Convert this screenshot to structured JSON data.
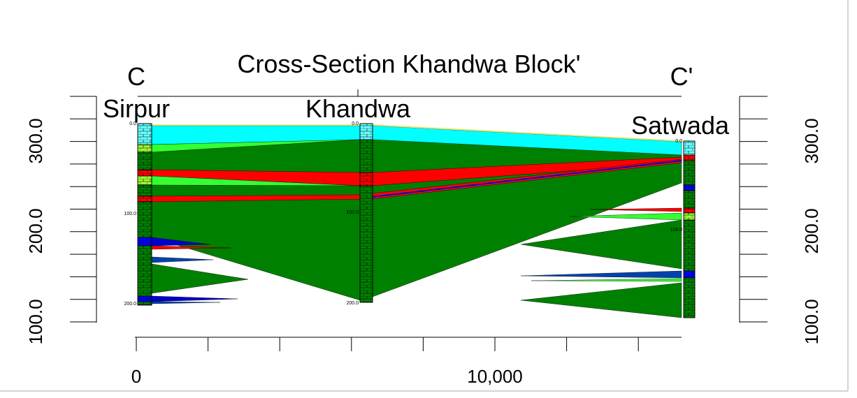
{
  "title": "Cross-Section Khandwa Block'",
  "section_start": "C",
  "section_end": "C'",
  "wells": [
    {
      "name": "Sirpur",
      "depth_labels": [
        "0.0",
        "100.0",
        "200.0"
      ]
    },
    {
      "name": "Khandwa",
      "depth_labels": [
        "0.0",
        "100.0",
        "200.0"
      ]
    },
    {
      "name": "Satwada",
      "depth_labels": [
        "0.0",
        "100.0"
      ]
    }
  ],
  "left_axis": {
    "labels": [
      "300.0",
      "200.0",
      "100.0"
    ]
  },
  "right_axis": {
    "labels": [
      "300.0",
      "200.0",
      "100.0"
    ]
  },
  "bottom_axis": {
    "labels": [
      "0",
      "10,000"
    ]
  }
}
